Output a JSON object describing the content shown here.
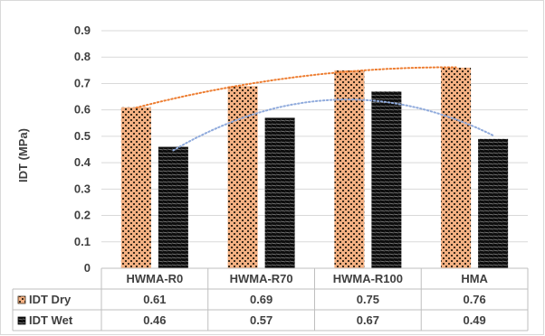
{
  "chart_data": {
    "type": "bar",
    "ylabel": "IDT (MPa)",
    "xlabel": "",
    "title": "",
    "ylim": [
      0,
      0.9
    ],
    "yticks": [
      "0",
      "0.1",
      "0.2",
      "0.3",
      "0.4",
      "0.5",
      "0.6",
      "0.7",
      "0.8",
      "0.9"
    ],
    "categories": [
      "HWMA-R0",
      "HWMA-R70",
      "HWMA-R100",
      "HMA"
    ],
    "grid": true,
    "legend": "data-table",
    "trendline": "polynomial (dotted)",
    "series": [
      {
        "name": "IDT Dry",
        "values": [
          0.61,
          0.69,
          0.75,
          0.76
        ],
        "values_text": [
          "0.61",
          "0.69",
          "0.75",
          "0.76"
        ],
        "color": "#f4b183",
        "dot_color": "#3a2a1a",
        "trend_color": "#ed7d31"
      },
      {
        "name": "IDT Wet",
        "values": [
          0.46,
          0.57,
          0.67,
          0.49
        ],
        "values_text": [
          "0.46",
          "0.57",
          "0.67",
          "0.49"
        ],
        "color": "#0d0d0d",
        "dot_color": "#8a8a8a",
        "trend_color": "#8faadc"
      }
    ]
  }
}
